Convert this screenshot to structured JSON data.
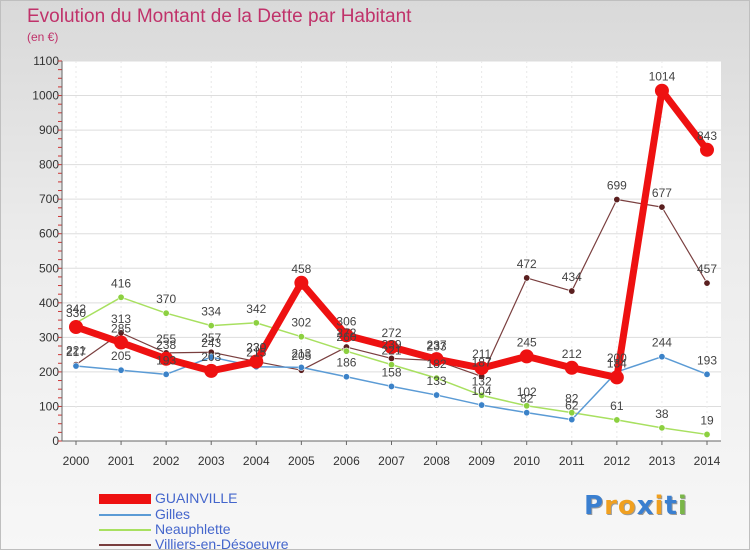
{
  "header": {
    "title": "Evolution du Montant de la Dette par Habitant",
    "subtitle": "(en €)"
  },
  "logo": {
    "text": "Proxiti",
    "letter_colors": [
      "#3a7fd0",
      "#f0a020",
      "#f0a020",
      "#3a7fd0",
      "#f0a020",
      "#3a7fd0",
      "#7ab648"
    ]
  },
  "chart_data": {
    "type": "line",
    "title": "Evolution du Montant de la Dette par Habitant",
    "subtitle": "(en €)",
    "xlabel": "",
    "ylabel": "",
    "ylim": [
      0,
      1100
    ],
    "yticks": [
      0,
      100,
      200,
      300,
      400,
      500,
      600,
      700,
      800,
      900,
      1000,
      1100
    ],
    "grid": "horizontal",
    "legend_position": "bottom-left",
    "x": [
      "2000",
      "2001",
      "2002",
      "2003",
      "2004",
      "2005",
      "2006",
      "2007",
      "2008",
      "2009",
      "2010",
      "2011",
      "2012",
      "2013",
      "2014"
    ],
    "series": [
      {
        "name": "GUAINVILLE",
        "color": "#ee1111",
        "marker": "#ee1111",
        "width": 7,
        "values": [
          330,
          285,
          238,
          203,
          230,
          458,
          306,
          272,
          237,
          211,
          245,
          212,
          184,
          1014,
          843
        ],
        "labels": [
          "330",
          "285",
          "238",
          "203",
          "230",
          "458",
          "306",
          "272",
          "237",
          "211",
          "245",
          "212",
          "184",
          "1014",
          "843"
        ]
      },
      {
        "name": "Gilles",
        "color": "#5b9bd5",
        "marker": "#3b82c8",
        "width": 1.5,
        "values": [
          217,
          205,
          193,
          243,
          215,
          213,
          186,
          158,
          133,
          104,
          82,
          62,
          200,
          244,
          193
        ],
        "labels": [
          "217",
          "205",
          "193",
          "243",
          "215",
          "213",
          "186",
          "158",
          "133",
          "104",
          "82",
          "62",
          "200",
          "244",
          "193"
        ]
      },
      {
        "name": "Neauphlette",
        "color": "#a8e060",
        "marker": "#8cd040",
        "width": 1.5,
        "values": [
          342,
          416,
          370,
          334,
          342,
          302,
          260,
          221,
          182,
          132,
          102,
          82,
          61,
          38,
          19
        ],
        "labels": [
          "342",
          "416",
          "370",
          "334",
          "342",
          "302",
          "260",
          "221",
          "182",
          "132",
          "102",
          "82",
          "61",
          "38",
          "19"
        ]
      },
      {
        "name": "Villiers-en-Désoeuvre",
        "color": "#7a3f3f",
        "marker": "#5a1f1f",
        "width": 1.2,
        "values": [
          221,
          313,
          255,
          257,
          230,
          205,
          272,
          239,
          233,
          187,
          472,
          434,
          699,
          677,
          457
        ],
        "labels": [
          "221",
          "313",
          "255",
          "257",
          "230",
          "205",
          "272",
          "239",
          "233",
          "187",
          "472",
          "434",
          "699",
          "677",
          "457"
        ]
      }
    ]
  }
}
